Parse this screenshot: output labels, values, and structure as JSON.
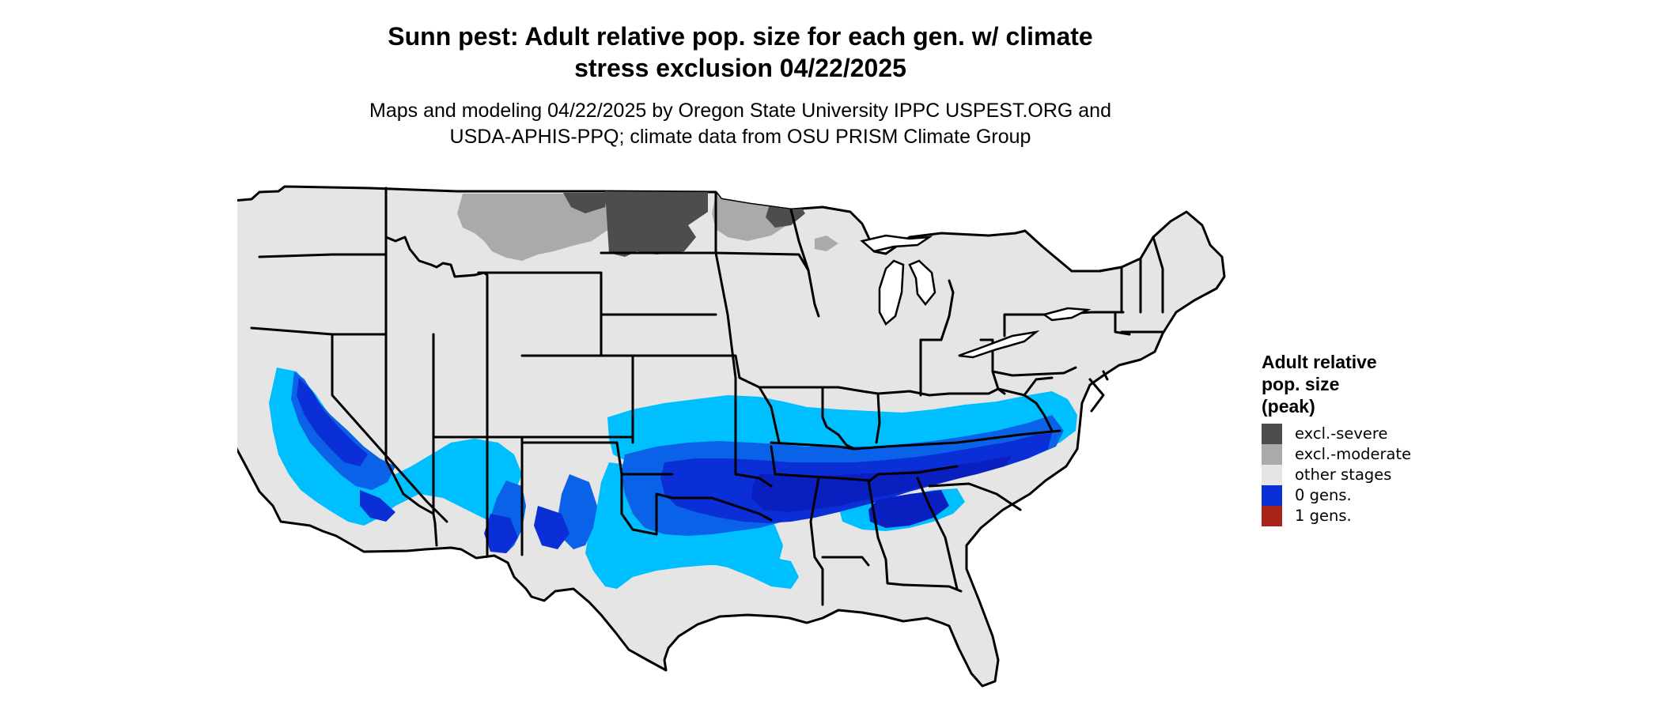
{
  "map": {
    "title_line1": "Sunn pest: Adult relative pop. size for each gen. w/ climate",
    "title_line2": "stress exclusion 04/22/2025",
    "subtitle_line1": "Maps and modeling 04/22/2025 by Oregon State University IPPC USPEST.ORG and",
    "subtitle_line2": "USDA-APHIS-PPQ; climate data from OSU PRISM Climate Group"
  },
  "legend": {
    "title_line1": "Adult relative",
    "title_line2": "pop. size",
    "title_line3": "(peak)",
    "items": [
      {
        "label": "excl.-severe",
        "color": "#4d4d4d"
      },
      {
        "label": "excl.-moderate",
        "color": "#aaaaaa"
      },
      {
        "label": "other stages",
        "color": "#e5e5e5"
      },
      {
        "label": "0 gens.",
        "color": "#0a2fd6"
      },
      {
        "label": "1 gens.",
        "color": "#a82418"
      }
    ]
  },
  "colors": {
    "land": "#e5e5e5",
    "border": "#000000",
    "water": "#ffffff",
    "excl_severe": "#4d4d4d",
    "excl_moderate": "#aaaaaa",
    "gens0_light": "#00bfff",
    "gens0_mid": "#0a62e8",
    "gens0_dark": "#0a2fd6",
    "gens0_deep": "#0a1fbf"
  }
}
